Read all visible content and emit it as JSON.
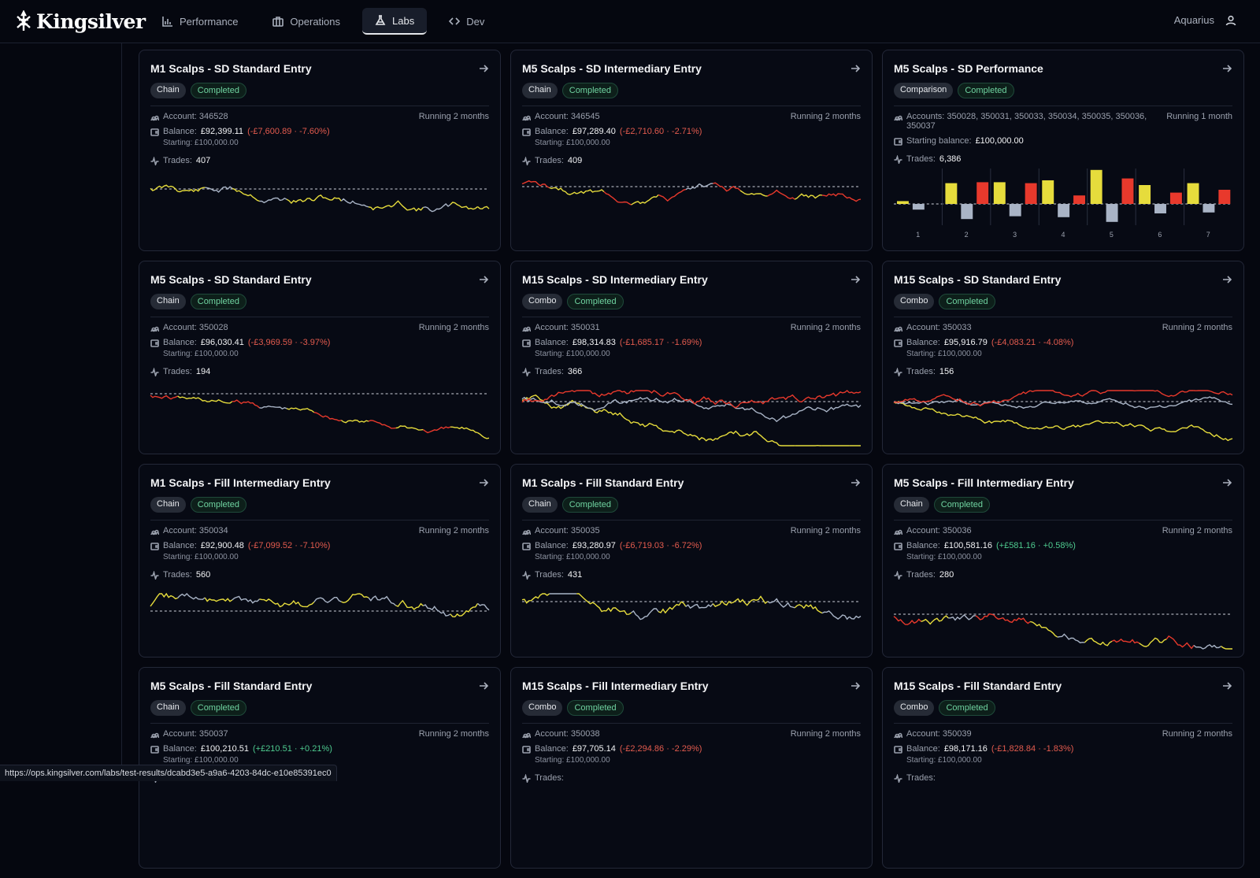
{
  "app": {
    "name": "Kingsilver"
  },
  "nav": [
    {
      "label": "Performance",
      "icon": "bar-chart-icon",
      "active": false
    },
    {
      "label": "Operations",
      "icon": "briefcase-icon",
      "active": false
    },
    {
      "label": "Labs",
      "icon": "flask-icon",
      "active": true
    },
    {
      "label": "Dev",
      "icon": "code-icon",
      "active": false
    }
  ],
  "user": {
    "name": "Aquarius"
  },
  "series_colors": {
    "yellow": "#e6dc3c",
    "red": "#e8392c",
    "grey": "#a9b4c6"
  },
  "cards": [
    {
      "title": "M1 Scalps - SD Standard Entry",
      "type": "Chain",
      "status": "Completed",
      "account_label": "Account:",
      "account": "346528",
      "running": "Running 2 months",
      "balance_label": "Balance:",
      "balance": "£92,399.11",
      "change": "(-£7,600.89 · -7.60%)",
      "change_sign": "neg",
      "starting": "Starting: £100,000.00",
      "trades_label": "Trades:",
      "trades": "407"
    },
    {
      "title": "M5 Scalps - SD Intermediary Entry",
      "type": "Chain",
      "status": "Completed",
      "account_label": "Account:",
      "account": "346545",
      "running": "Running 2 months",
      "balance_label": "Balance:",
      "balance": "£97,289.40",
      "change": "(-£2,710.60 · -2.71%)",
      "change_sign": "neg",
      "starting": "Starting: £100,000.00",
      "trades_label": "Trades:",
      "trades": "409"
    },
    {
      "title": "M5 Scalps - SD Performance",
      "type": "Comparison",
      "status": "Completed",
      "account_label": "Accounts:",
      "account": "350028, 350031, 350033, 350034, 350035, 350036, 350037",
      "running": "Running 1 month",
      "balance_label": "Starting balance:",
      "balance": "£100,000.00",
      "trades_label": "Trades:",
      "trades": "6,386"
    },
    {
      "title": "M5 Scalps - SD Standard Entry",
      "type": "Chain",
      "status": "Completed",
      "account_label": "Account:",
      "account": "350028",
      "running": "Running 2 months",
      "balance_label": "Balance:",
      "balance": "£96,030.41",
      "change": "(-£3,969.59 · -3.97%)",
      "change_sign": "neg",
      "starting": "Starting: £100,000.00",
      "trades_label": "Trades:",
      "trades": "194"
    },
    {
      "title": "M15 Scalps - SD Intermediary Entry",
      "type": "Combo",
      "status": "Completed",
      "account_label": "Account:",
      "account": "350031",
      "running": "Running 2 months",
      "balance_label": "Balance:",
      "balance": "£98,314.83",
      "change": "(-£1,685.17 · -1.69%)",
      "change_sign": "neg",
      "starting": "Starting: £100,000.00",
      "trades_label": "Trades:",
      "trades": "366"
    },
    {
      "title": "M15 Scalps - SD Standard Entry",
      "type": "Combo",
      "status": "Completed",
      "account_label": "Account:",
      "account": "350033",
      "running": "Running 2 months",
      "balance_label": "Balance:",
      "balance": "£95,916.79",
      "change": "(-£4,083.21 · -4.08%)",
      "change_sign": "neg",
      "starting": "Starting: £100,000.00",
      "trades_label": "Trades:",
      "trades": "156"
    },
    {
      "title": "M1 Scalps - Fill Intermediary Entry",
      "type": "Chain",
      "status": "Completed",
      "account_label": "Account:",
      "account": "350034",
      "running": "Running 2 months",
      "balance_label": "Balance:",
      "balance": "£92,900.48",
      "change": "(-£7,099.52 · -7.10%)",
      "change_sign": "neg",
      "starting": "Starting: £100,000.00",
      "trades_label": "Trades:",
      "trades": "560"
    },
    {
      "title": "M1 Scalps - Fill Standard Entry",
      "type": "Chain",
      "status": "Completed",
      "account_label": "Account:",
      "account": "350035",
      "running": "Running 2 months",
      "balance_label": "Balance:",
      "balance": "£93,280.97",
      "change": "(-£6,719.03 · -6.72%)",
      "change_sign": "neg",
      "starting": "Starting: £100,000.00",
      "trades_label": "Trades:",
      "trades": "431"
    },
    {
      "title": "M5 Scalps - Fill Intermediary Entry",
      "type": "Chain",
      "status": "Completed",
      "account_label": "Account:",
      "account": "350036",
      "running": "Running 2 months",
      "balance_label": "Balance:",
      "balance": "£100,581.16",
      "change": "(+£581.16 · +0.58%)",
      "change_sign": "pos",
      "starting": "Starting: £100,000.00",
      "trades_label": "Trades:",
      "trades": "280"
    },
    {
      "title": "M5 Scalps - Fill Standard Entry",
      "type": "Chain",
      "status": "Completed",
      "account_label": "Account:",
      "account": "350037",
      "running": "Running 2 months",
      "balance_label": "Balance:",
      "balance": "£100,210.51",
      "change": "(+£210.51 · +0.21%)",
      "change_sign": "pos",
      "starting": "Starting: £100,000.00",
      "trades_label": "Trades:",
      "trades": ""
    },
    {
      "title": "M15 Scalps - Fill Intermediary Entry",
      "type": "Combo",
      "status": "Completed",
      "account_label": "Account:",
      "account": "350038",
      "running": "Running 2 months",
      "balance_label": "Balance:",
      "balance": "£97,705.14",
      "change": "(-£2,294.86 · -2.29%)",
      "change_sign": "neg",
      "starting": "Starting: £100,000.00",
      "trades_label": "Trades:",
      "trades": ""
    },
    {
      "title": "M15 Scalps - Fill Standard Entry",
      "type": "Combo",
      "status": "Completed",
      "account_label": "Account:",
      "account": "350039",
      "running": "Running 2 months",
      "balance_label": "Balance:",
      "balance": "£98,171.16",
      "change": "(-£1,828.84 · -1.83%)",
      "change_sign": "neg",
      "starting": "Starting: £100,000.00",
      "trades_label": "Trades:",
      "trades": ""
    }
  ],
  "comparison_chart": {
    "type": "bar",
    "categories": [
      "1",
      "2",
      "3",
      "4",
      "5",
      "6",
      "7"
    ],
    "series": [
      {
        "color": "#e6dc3c",
        "values": [
          0.3,
          2.2,
          2.3,
          2.5,
          3.6,
          2.0,
          2.2
        ]
      },
      {
        "color": "#a9b4c6",
        "values": [
          -0.6,
          -1.6,
          -1.3,
          -1.4,
          -1.9,
          -1.0,
          -0.9
        ]
      },
      {
        "color": "#e8392c",
        "values": [
          0,
          2.3,
          2.2,
          0.9,
          2.7,
          1.2,
          1.5
        ]
      }
    ]
  },
  "status_url": "https://ops.kingsilver.com/labs/test-results/dcabd3e5-a9a6-4203-84dc-e10e85391ec0"
}
